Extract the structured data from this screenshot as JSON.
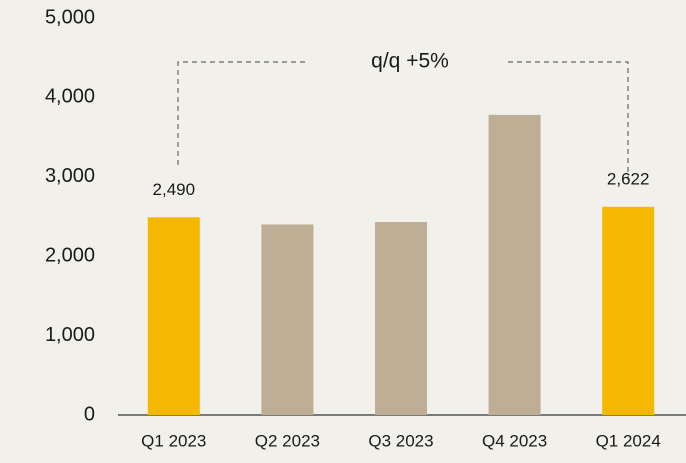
{
  "chart_data": {
    "type": "bar",
    "categories": [
      "Q1 2023",
      "Q2 2023",
      "Q3 2023",
      "Q4 2023",
      "Q1 2024"
    ],
    "values": [
      2490,
      2400,
      2430,
      3780,
      2622
    ],
    "value_labels": [
      "2,490",
      null,
      null,
      null,
      "2,622"
    ],
    "colors": [
      "#f5b800",
      "#bfae96",
      "#bfae96",
      "#bfae96",
      "#f5b800"
    ],
    "ylim": [
      0,
      5000
    ],
    "yticks": [
      0,
      {
        "value": 1000,
        "label": "1,000"
      },
      {
        "value": 2000,
        "label": "2,000"
      },
      {
        "value": 3000,
        "label": "3,000"
      },
      {
        "value": 4000,
        "label": "4,000"
      },
      {
        "value": 5000,
        "label": "5,000"
      }
    ],
    "grid": false,
    "annotation": "q/q +5%"
  }
}
